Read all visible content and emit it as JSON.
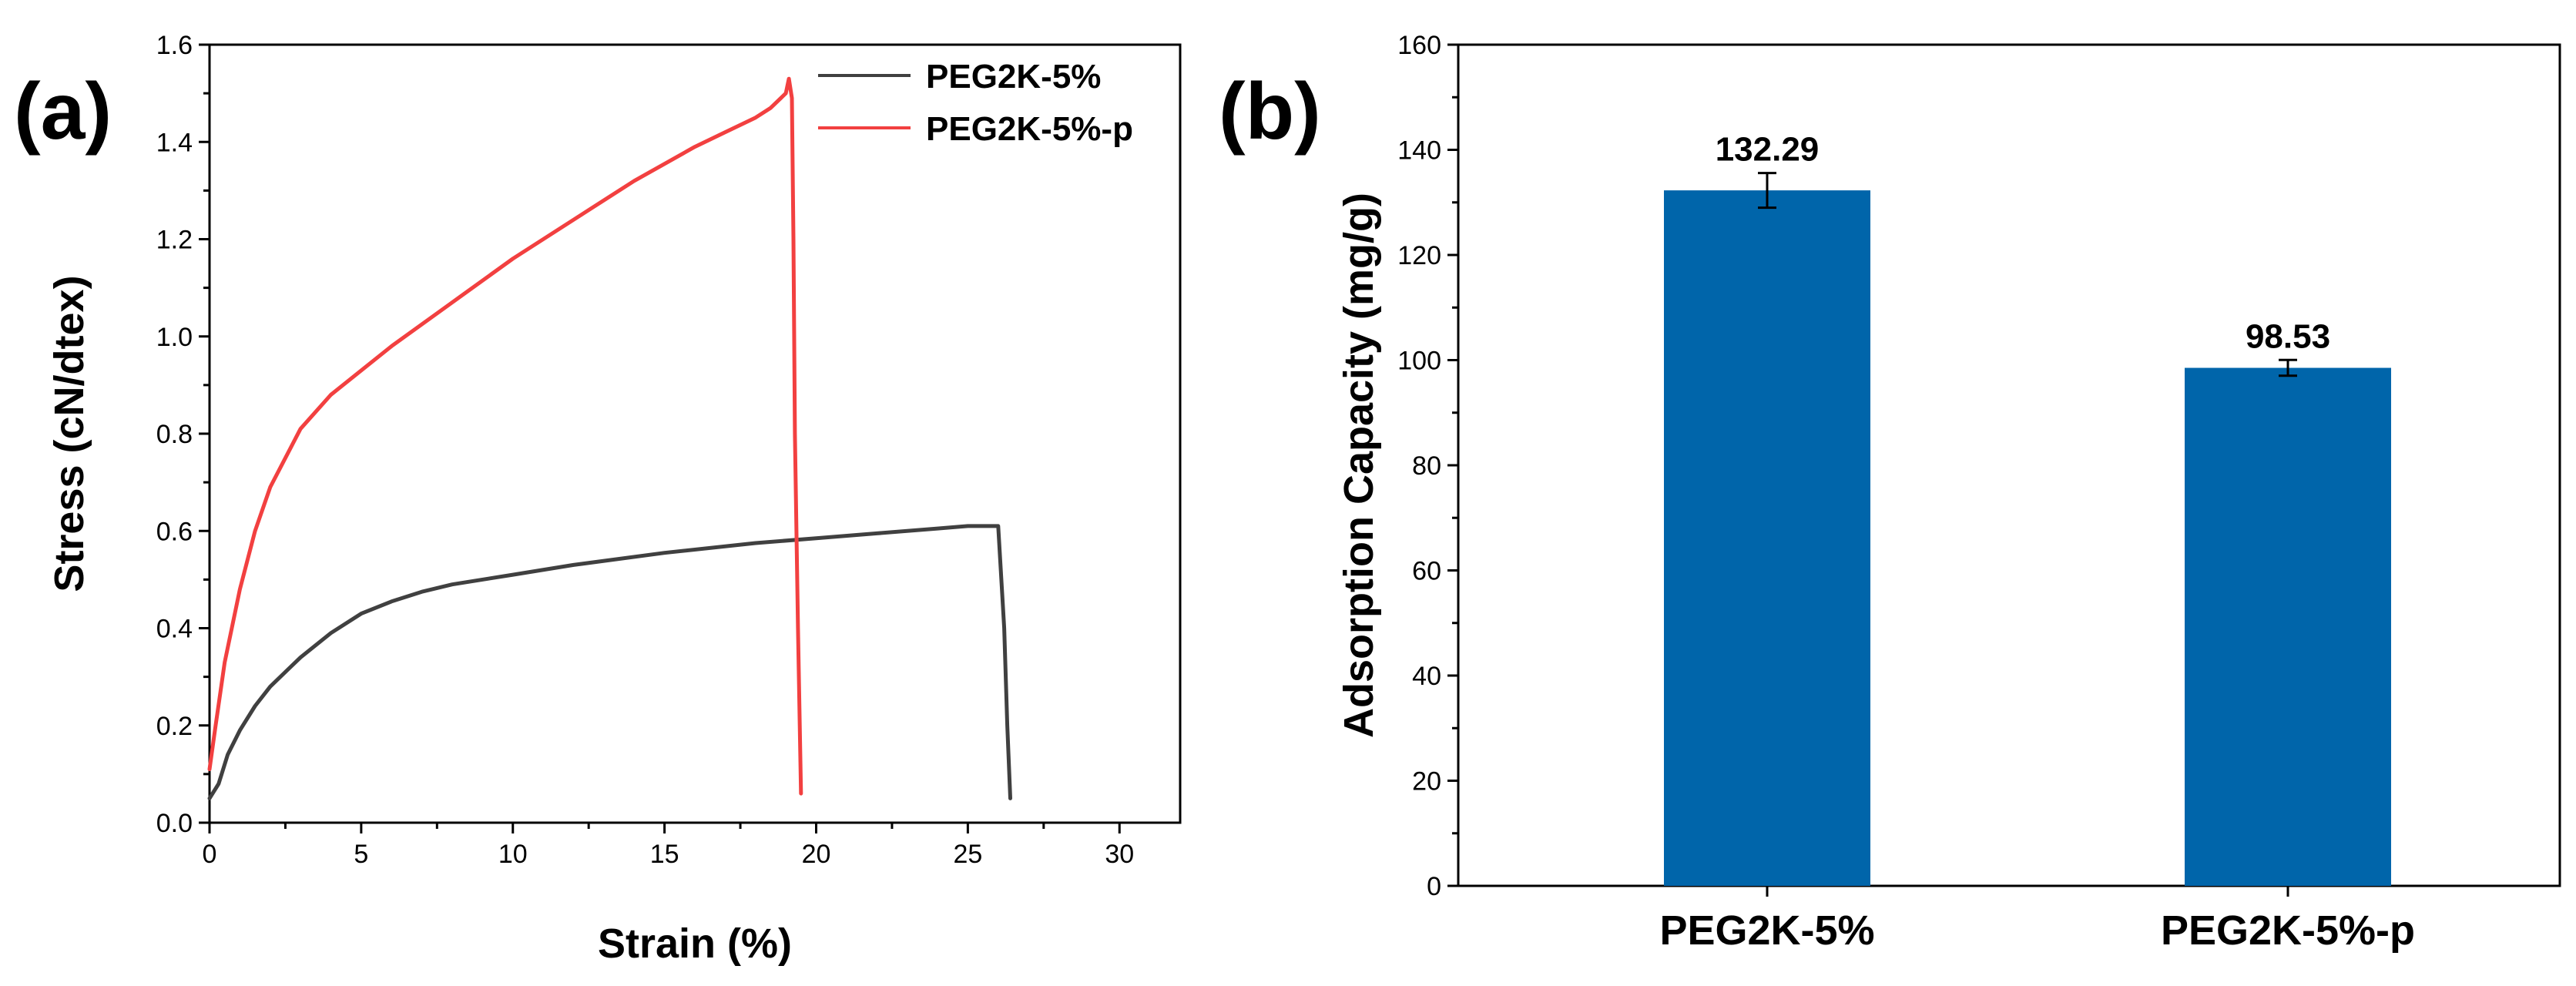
{
  "chart_data": [
    {
      "panel": "(a)",
      "type": "line",
      "xlabel": "Strain (%)",
      "ylabel": "Stress (cN/dtex)",
      "xlim": [
        0,
        32
      ],
      "ylim": [
        0,
        1.6
      ],
      "xticks": [
        "0",
        "5",
        "10",
        "15",
        "20",
        "25",
        "30"
      ],
      "yticks": [
        "0.0",
        "0.2",
        "0.4",
        "0.6",
        "0.8",
        "1.0",
        "1.2",
        "1.4",
        "1.6"
      ],
      "legend_position": "top-right",
      "grid": false,
      "series": [
        {
          "name": "PEG2K-5%",
          "color": "#404040",
          "x": [
            0,
            0.3,
            0.6,
            1,
            1.5,
            2,
            3,
            4,
            5,
            6,
            7,
            8,
            10,
            12,
            15,
            18,
            20,
            22,
            24,
            25,
            26,
            26.2,
            26.3,
            26.4
          ],
          "y": [
            0.05,
            0.08,
            0.14,
            0.19,
            0.24,
            0.28,
            0.34,
            0.39,
            0.43,
            0.455,
            0.475,
            0.49,
            0.51,
            0.53,
            0.555,
            0.575,
            0.585,
            0.595,
            0.605,
            0.61,
            0.61,
            0.4,
            0.2,
            0.05
          ]
        },
        {
          "name": "PEG2K-5%-p",
          "color": "#f24040",
          "x": [
            0,
            0.2,
            0.5,
            1,
            1.5,
            2,
            3,
            4,
            5,
            6,
            8,
            10,
            12,
            14,
            16,
            17,
            18,
            18.5,
            19,
            19.1,
            19.2,
            19.25,
            19.3,
            19.4,
            19.5
          ],
          "y": [
            0.11,
            0.2,
            0.33,
            0.48,
            0.6,
            0.69,
            0.81,
            0.88,
            0.93,
            0.98,
            1.07,
            1.16,
            1.24,
            1.32,
            1.39,
            1.42,
            1.45,
            1.47,
            1.5,
            1.53,
            1.49,
            1.2,
            0.8,
            0.4,
            0.06
          ]
        }
      ]
    },
    {
      "panel": "(b)",
      "type": "bar",
      "xlabel": "",
      "ylabel": "Adsorption Capacity (mg/g)",
      "categories": [
        "PEG2K-5%",
        "PEG2K-5%-p"
      ],
      "values": [
        132.29,
        98.53
      ],
      "value_labels": [
        "132.29",
        "98.53"
      ],
      "errors": [
        3.3,
        1.5
      ],
      "ylim": [
        0,
        160
      ],
      "yticks": [
        "0",
        "20",
        "40",
        "60",
        "80",
        "100",
        "120",
        "140",
        "160"
      ],
      "bar_color": "#0065aa",
      "grid": false
    }
  ]
}
